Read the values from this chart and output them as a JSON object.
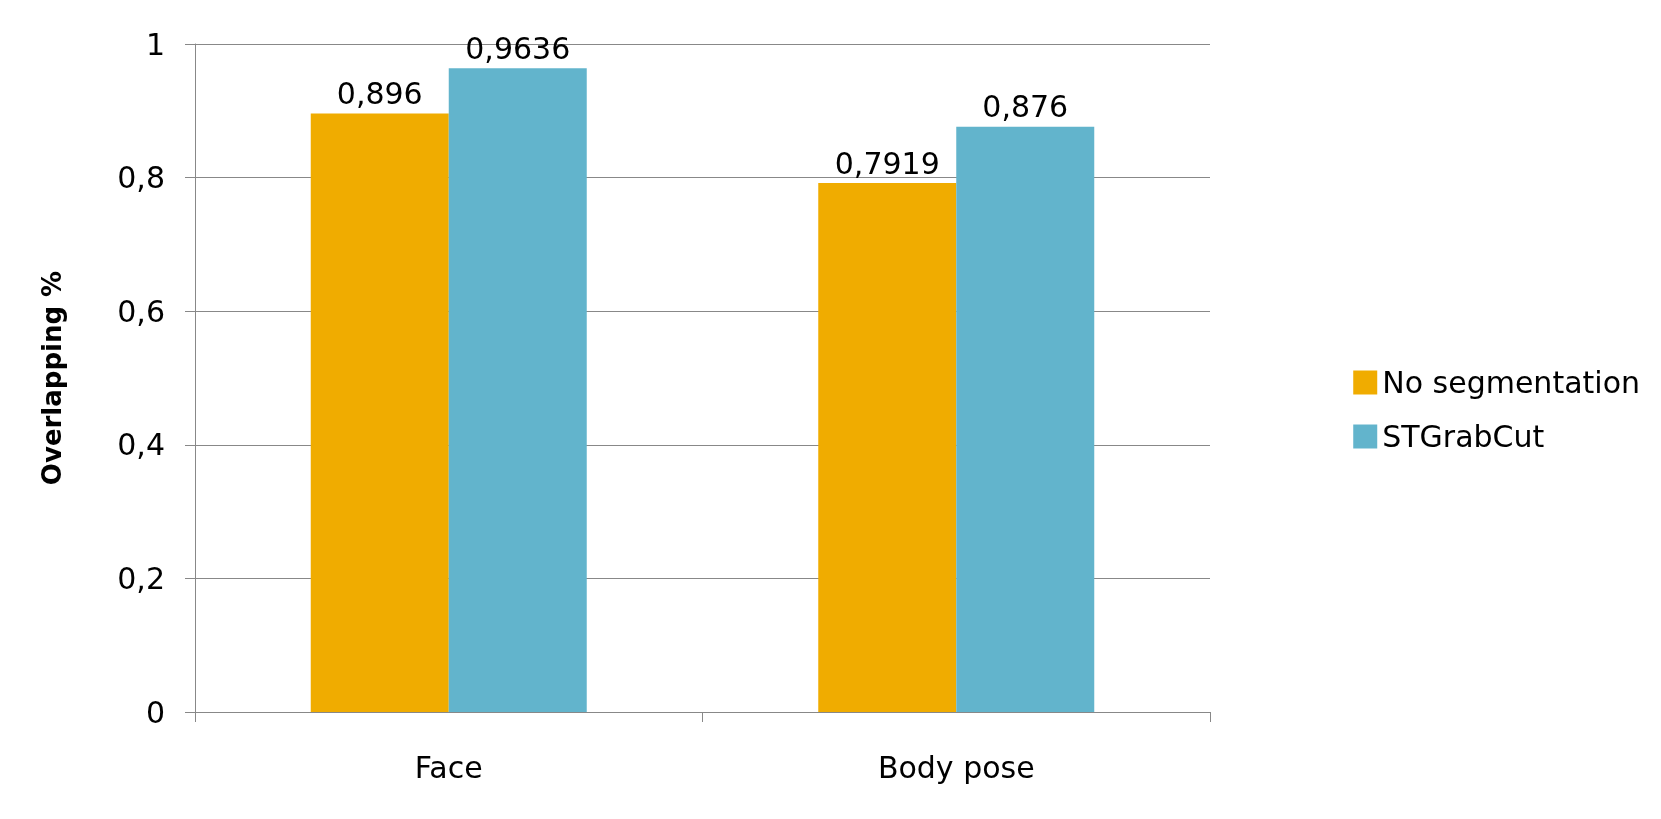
{
  "chart_data": {
    "type": "bar",
    "ylabel": "Overlapping %",
    "categories": [
      "Face",
      "Body pose"
    ],
    "series": [
      {
        "name": "No segmentation",
        "color": "#f0ac00",
        "values": [
          0.896,
          0.7919
        ],
        "value_labels": [
          "0,896",
          "0,7919"
        ]
      },
      {
        "name": "STGrabCut",
        "color": "#62b4cc",
        "values": [
          0.9636,
          0.876
        ],
        "value_labels": [
          "0,9636",
          "0,876"
        ]
      }
    ],
    "ylim": [
      0,
      1
    ],
    "yticks": [
      0,
      {
        "value": 0.2,
        "label": "0,2"
      },
      {
        "value": 0.4,
        "label": "0,4"
      },
      {
        "value": 0.6,
        "label": "0,6"
      },
      {
        "value": 0.8,
        "label": "0,8"
      },
      1
    ],
    "grid": "y",
    "legend": "right"
  }
}
